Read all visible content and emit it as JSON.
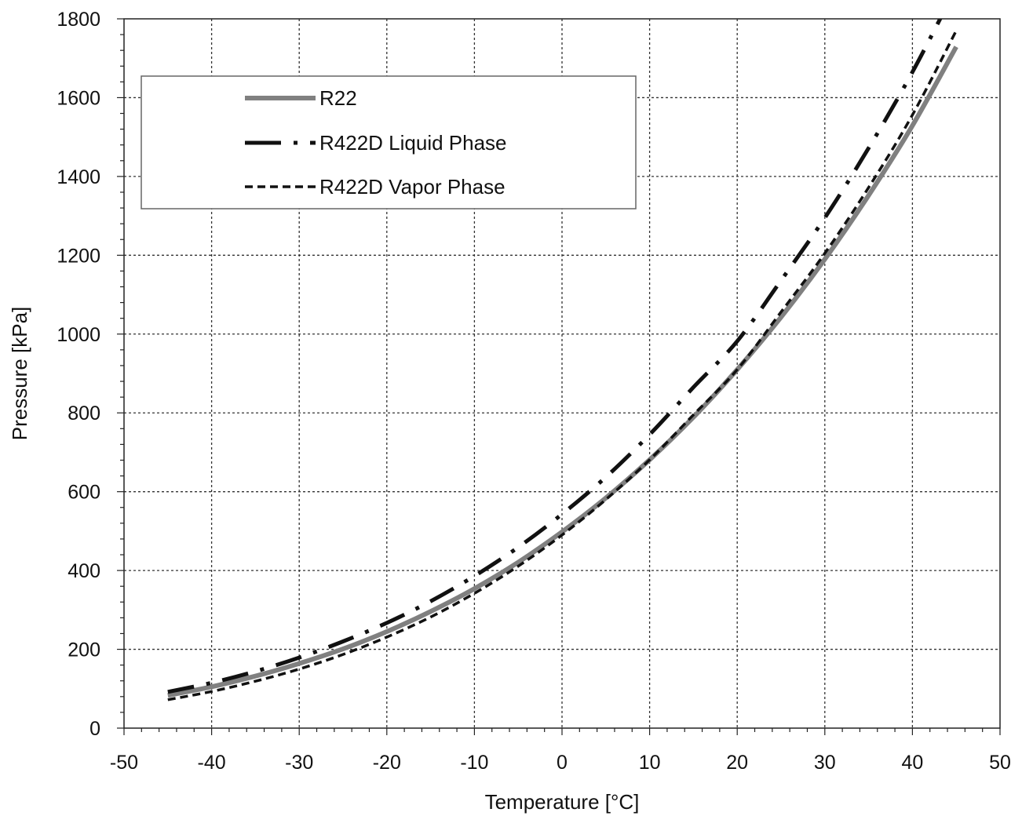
{
  "chart_data": {
    "type": "line",
    "title": "",
    "xlabel": "Temperature [°C]",
    "ylabel": "Pressure [kPa]",
    "xlim": [
      -50,
      50
    ],
    "ylim": [
      0,
      1800
    ],
    "xticks": [
      -50,
      -40,
      -30,
      -20,
      -10,
      0,
      10,
      20,
      30,
      40,
      50
    ],
    "yticks": [
      0,
      200,
      400,
      600,
      800,
      1000,
      1200,
      1400,
      1600,
      1800
    ],
    "grid": true,
    "legend_position": "top-left",
    "x": [
      -45,
      -40,
      -35,
      -30,
      -25,
      -20,
      -15,
      -10,
      -5,
      0,
      5,
      10,
      15,
      20,
      25,
      30,
      35,
      40,
      45
    ],
    "series": [
      {
        "name": "R22",
        "style": "solid-thick",
        "color": "#808080",
        "values": [
          83,
          105,
          132,
          164,
          201,
          245,
          296,
          354,
          421,
          498,
          584,
          681,
          789,
          910,
          1043,
          1190,
          1352,
          1529,
          1729
        ]
      },
      {
        "name": "R422D Liquid Phase",
        "style": "dash-dot",
        "color": "#111111",
        "values": [
          92,
          115,
          144,
          179,
          220,
          267,
          322,
          386,
          459,
          543,
          637,
          745,
          865,
          982,
          1136,
          1295,
          1472,
          1665,
          1880
        ]
      },
      {
        "name": "R422D Vapor Phase",
        "style": "dashed",
        "color": "#111111",
        "values": [
          72,
          93,
          119,
          150,
          187,
          231,
          282,
          342,
          411,
          490,
          580,
          681,
          795,
          910,
          1056,
          1205,
          1372,
          1556,
          1770
        ]
      }
    ]
  }
}
